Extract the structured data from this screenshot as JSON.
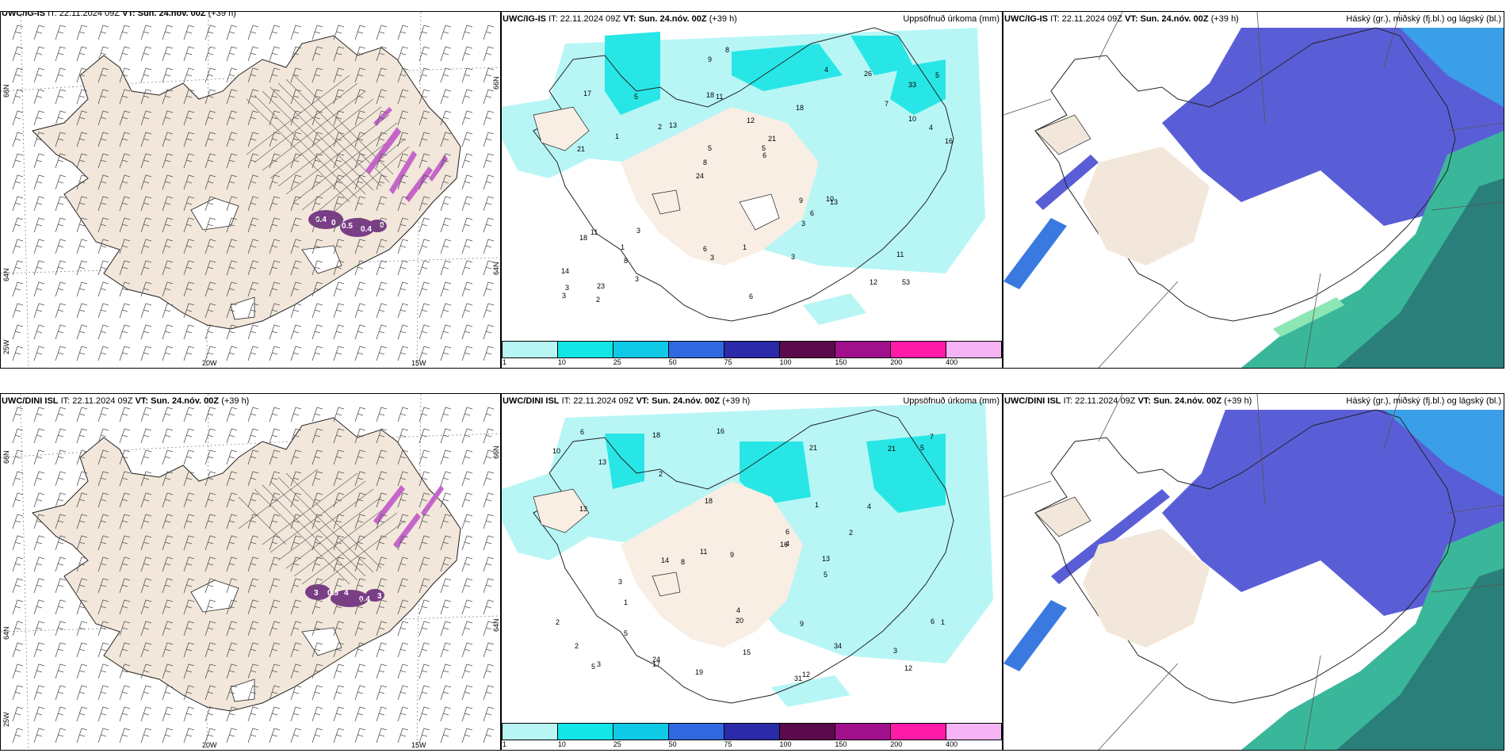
{
  "rows": [
    {
      "model": "UWC/IG-IS",
      "it_label": "IT:",
      "it_value": "22.11.2024 09Z",
      "vt_label": "VT:",
      "vt_value": "Sun. 24.nóv. 00Z",
      "lead": "(+39 h)",
      "left_header_wrapped": "UWC/IG-IS IT: 22.11.2024 09Z VT: Sun. 24.nóv. 00Z (+39 h)",
      "wind_labels": [
        "0.4",
        "0",
        "0.5",
        "0.4",
        "0"
      ],
      "precip_numbers": [
        "53",
        "21",
        "33",
        "24",
        "18",
        "23",
        "18",
        "12",
        "11",
        "13",
        "14",
        "8",
        "11",
        "21",
        "13",
        "17",
        "9",
        "16",
        "9",
        "10",
        "8",
        "6",
        "5",
        "5",
        "4",
        "3",
        "12",
        "11",
        "10",
        "6",
        "2",
        "1",
        "3",
        "3",
        "4",
        "5",
        "3",
        "3",
        "6",
        "18",
        "7",
        "5",
        "6",
        "3",
        "1",
        "2",
        "3",
        "1",
        "26",
        "8"
      ]
    },
    {
      "model": "UWC/DINI ISL",
      "it_label": "IT:",
      "it_value": "22.11.2024 09Z",
      "vt_label": "VT:",
      "vt_value": "Sun. 24.nóv. 00Z",
      "lead": "(+39 h)",
      "left_header_wrapped": "UWC/DINI ISL IT: 22.11.2024 09Z VT: Sun. 24.nóv. 00Z (+39 h)",
      "wind_labels": [
        "3",
        "0.5",
        "4",
        "0.4",
        "3"
      ],
      "precip_numbers": [
        "19",
        "31",
        "24",
        "34",
        "18",
        "13",
        "14",
        "12",
        "16",
        "18",
        "21",
        "15",
        "11",
        "20",
        "21",
        "16",
        "13",
        "17",
        "8",
        "10",
        "9",
        "7",
        "6",
        "5",
        "4",
        "3",
        "2",
        "1",
        "6",
        "5",
        "9",
        "12",
        "4",
        "5",
        "5",
        "13",
        "6",
        "2",
        "1",
        "3",
        "4",
        "2",
        "1",
        "3",
        "2"
      ]
    }
  ],
  "precip_title": "Uppsöfnuð úrkoma (mm)",
  "cloud_title": "Háský (gr.), miðský (fj.bl.) og lágský (bl.)",
  "colorbar": {
    "ticks": [
      "1",
      "10",
      "25",
      "50",
      "75",
      "100",
      "150",
      "200",
      "400"
    ],
    "colors": [
      "#b8f6f6",
      "#12e6e6",
      "#0fc9e6",
      "#3068e0",
      "#2a2aa8",
      "#5a0a4a",
      "#a0108c",
      "#ff1aa8",
      "#f7b4f4"
    ]
  },
  "axis_labels": {
    "lat66": "66N",
    "lat64": "64N",
    "lon20": "20W",
    "lon15": "15W",
    "lon25": "25W"
  },
  "colors": {
    "land": "#f2e7da",
    "precip_light": "#b8f6f6",
    "precip_mid": "#28e6e6",
    "cloud_high": "#5a5ed6",
    "cloud_mid": "#3a9ee8",
    "cloud_low": "#3ab79a",
    "wind_pink": "#c466c9",
    "wind_dark": "#7a3e86"
  }
}
